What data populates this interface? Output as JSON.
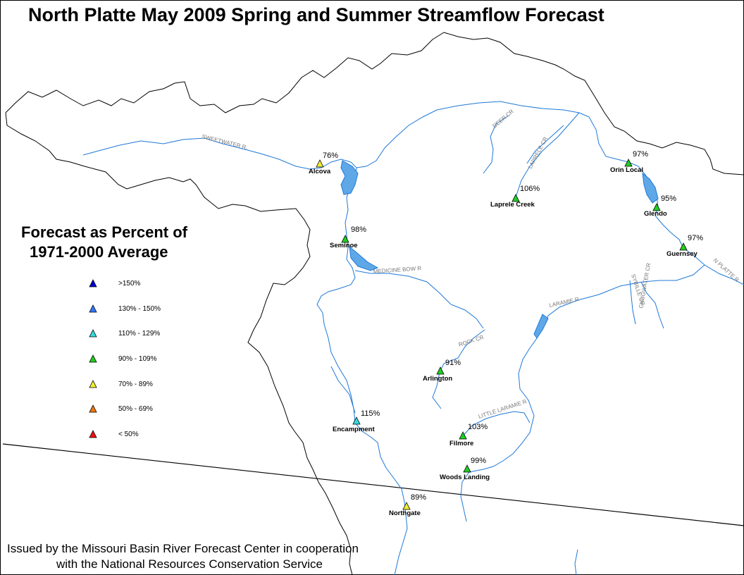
{
  "title": "North Platte May 2009 Spring and Summer Streamflow Forecast",
  "legend": {
    "title_line1": "Forecast as Percent of",
    "title_line2": "1971-2000 Average",
    "items": [
      {
        "label": ">150%",
        "color": "#0000cc"
      },
      {
        "label": "130% - 150%",
        "color": "#3377ff"
      },
      {
        "label": "110% - 129%",
        "color": "#33dddd"
      },
      {
        "label": "90% - 109%",
        "color": "#22cc22"
      },
      {
        "label": "70% - 89%",
        "color": "#eeee33"
      },
      {
        "label": "50% - 69%",
        "color": "#ee7711"
      },
      {
        "label": "< 50%",
        "color": "#ee1111"
      }
    ]
  },
  "stations": [
    {
      "name": "Alcova",
      "percent": "76%",
      "color": "#eeee33"
    },
    {
      "name": "Seminoe",
      "percent": "98%",
      "color": "#22cc22"
    },
    {
      "name": "Laprele Creek",
      "percent": "106%",
      "color": "#22cc22"
    },
    {
      "name": "Orin Local",
      "percent": "97%",
      "color": "#22cc22"
    },
    {
      "name": "Glendo",
      "percent": "95%",
      "color": "#22cc22"
    },
    {
      "name": "Guernsey",
      "percent": "97%",
      "color": "#22cc22"
    },
    {
      "name": "Arlington",
      "percent": "91%",
      "color": "#22cc22"
    },
    {
      "name": "Encampment",
      "percent": "115%",
      "color": "#33dddd"
    },
    {
      "name": "Filmore",
      "percent": "103%",
      "color": "#22cc22"
    },
    {
      "name": "Woods Landing",
      "percent": "99%",
      "color": "#22cc22"
    },
    {
      "name": "Northgate",
      "percent": "89%",
      "color": "#eeee33"
    }
  ],
  "rivers": [
    {
      "label": "SWEETWATER R."
    },
    {
      "label": "DEER CR"
    },
    {
      "label": "LAPRELE CR"
    },
    {
      "label": "MEDICINE BOW R"
    },
    {
      "label": "ROCK CR"
    },
    {
      "label": "LARAMIE R"
    },
    {
      "label": "SYBILLE CR"
    },
    {
      "label": "CHUGWATER CR"
    },
    {
      "label": "N PLATTE R"
    },
    {
      "label": "LITTLE LARAMIE R"
    }
  ],
  "footer": {
    "line1": "Issued by the Missouri Basin River Forecast Center in cooperation",
    "line2": "with the National Resources Conservation Service"
  },
  "colors": {
    "river": "#1f78d8",
    "lake": "#5fa8e8",
    "boundary": "#000000"
  }
}
